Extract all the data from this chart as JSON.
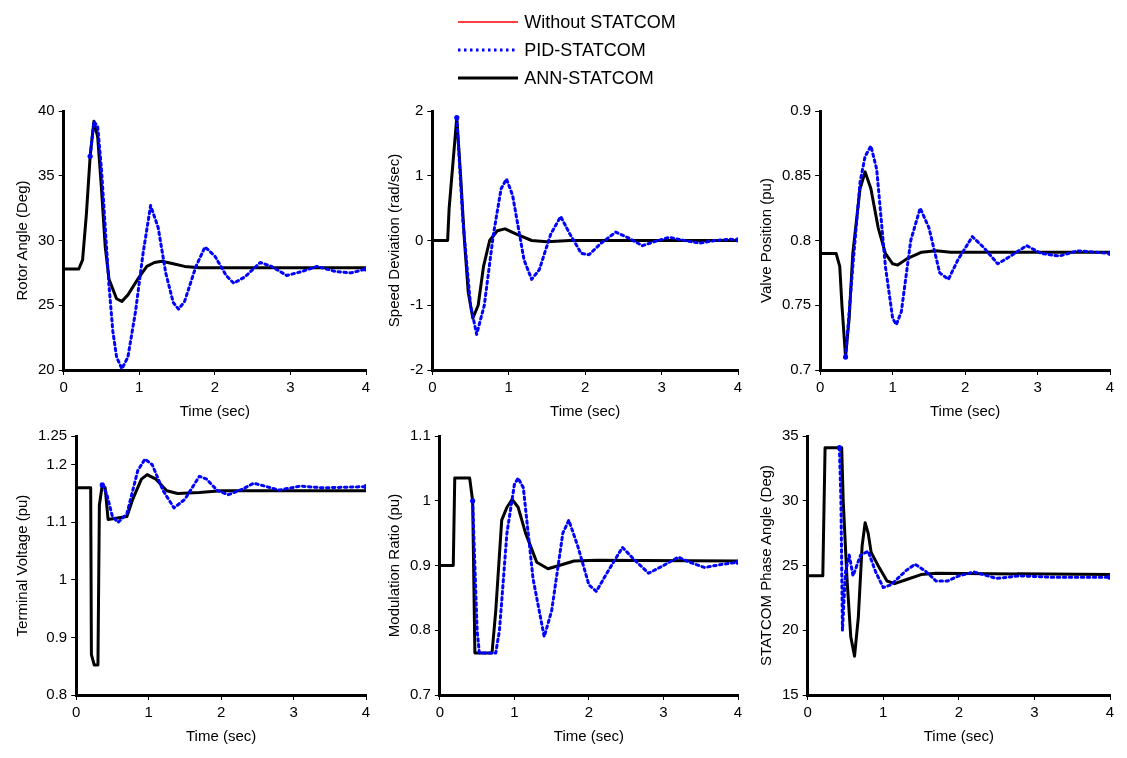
{
  "chart_data": [
    {
      "type": "line",
      "xlabel": "Time (sec)",
      "ylabel": "Rotor Angle (Deg)",
      "xlim": [
        0,
        4
      ],
      "xticks": [
        0,
        1,
        2,
        3,
        4
      ],
      "ylim": [
        20,
        40
      ],
      "yticks": [
        20,
        25,
        30,
        35,
        40
      ],
      "legend": "top",
      "grid": false,
      "series": [
        {
          "name": "Without STATCOM",
          "color": "#ff0000",
          "line_style": "solid"
        },
        {
          "name": "PID-STATCOM",
          "color": "#0000ff",
          "line_style": "dotted",
          "x": [
            0.35,
            0.4,
            0.45,
            0.5,
            0.55,
            0.6,
            0.65,
            0.7,
            0.77,
            0.85,
            0.95,
            1.05,
            1.15,
            1.25,
            1.35,
            1.45,
            1.52,
            1.6,
            1.75,
            1.87,
            2.0,
            2.15,
            2.25,
            2.4,
            2.6,
            2.75,
            2.95,
            3.15,
            3.35,
            3.6,
            3.8,
            4
          ],
          "values": [
            36.5,
            39.2,
            38.8,
            35.5,
            31,
            26.5,
            23,
            21,
            20.1,
            21,
            24.5,
            29,
            32.7,
            31,
            27.5,
            25.2,
            24.7,
            25.3,
            28,
            29.5,
            28.8,
            27.3,
            26.7,
            27.2,
            28.3,
            28,
            27.3,
            27.6,
            28,
            27.6,
            27.5,
            27.8
          ]
        },
        {
          "name": "ANN-STATCOM",
          "color": "#000000",
          "line_style": "solid",
          "x": [
            0,
            0.2,
            0.25,
            0.3,
            0.35,
            0.4,
            0.45,
            0.5,
            0.55,
            0.6,
            0.7,
            0.77,
            0.85,
            1.0,
            1.1,
            1.2,
            1.3,
            1.45,
            1.6,
            1.8,
            4
          ],
          "values": [
            27.8,
            27.8,
            28.5,
            32,
            36.5,
            39.2,
            38,
            34,
            29.5,
            27,
            25.5,
            25.3,
            25.8,
            27.2,
            28,
            28.3,
            28.4,
            28.2,
            28,
            27.9,
            27.9
          ]
        }
      ]
    },
    {
      "type": "line",
      "xlabel": "Time (sec)",
      "ylabel": "Speed Deviation (rad/sec)",
      "xlim": [
        0,
        4
      ],
      "xticks": [
        0,
        1,
        2,
        3,
        4
      ],
      "ylim": [
        -2,
        2
      ],
      "yticks": [
        -2,
        -1,
        0,
        1,
        2
      ],
      "grid": false,
      "series": [
        {
          "color": "#0000ff",
          "line_style": "dotted",
          "x": [
            0.32,
            0.4,
            0.5,
            0.58,
            0.68,
            0.8,
            0.9,
            0.97,
            1.05,
            1.2,
            1.3,
            1.4,
            1.55,
            1.68,
            1.8,
            1.95,
            2.05,
            2.2,
            2.4,
            2.55,
            2.75,
            2.9,
            3.1,
            3.3,
            3.5,
            3.7,
            3.9,
            4
          ],
          "values": [
            1.9,
            0.3,
            -1.0,
            -1.45,
            -1.0,
            0.1,
            0.8,
            0.95,
            0.7,
            -0.3,
            -0.6,
            -0.45,
            0.1,
            0.37,
            0.1,
            -0.2,
            -0.22,
            -0.05,
            0.13,
            0.05,
            -0.08,
            -0.02,
            0.05,
            0,
            -0.04,
            0,
            0.02,
            0.01
          ]
        },
        {
          "color": "#000000",
          "line_style": "solid",
          "x": [
            0,
            0.2,
            0.22,
            0.32,
            0.37,
            0.42,
            0.47,
            0.53,
            0.6,
            0.67,
            0.75,
            0.85,
            0.95,
            1.1,
            1.3,
            1.5,
            1.8,
            4
          ],
          "values": [
            0,
            0,
            0.5,
            1.9,
            1.0,
            0,
            -0.8,
            -1.2,
            -1.0,
            -0.4,
            0,
            0.15,
            0.18,
            0.1,
            0,
            -0.02,
            0,
            0
          ]
        }
      ]
    },
    {
      "type": "line",
      "xlabel": "Time (sec)",
      "ylabel": "Valve Position (pu)",
      "xlim": [
        0,
        4
      ],
      "xticks": [
        0,
        1,
        2,
        3,
        4
      ],
      "ylim": [
        0.7,
        0.9
      ],
      "yticks": [
        0.7,
        0.75,
        0.8,
        0.85,
        0.9
      ],
      "grid": false,
      "series": [
        {
          "color": "#0000ff",
          "line_style": "dotted",
          "x": [
            0.35,
            0.45,
            0.55,
            0.62,
            0.7,
            0.78,
            0.9,
            1.0,
            1.05,
            1.12,
            1.25,
            1.38,
            1.5,
            1.65,
            1.77,
            1.9,
            2.1,
            2.25,
            2.45,
            2.6,
            2.85,
            3.05,
            3.3,
            3.55,
            3.8,
            4
          ],
          "values": [
            0.71,
            0.78,
            0.845,
            0.865,
            0.873,
            0.855,
            0.78,
            0.74,
            0.735,
            0.745,
            0.8,
            0.825,
            0.81,
            0.775,
            0.77,
            0.785,
            0.803,
            0.795,
            0.782,
            0.787,
            0.796,
            0.79,
            0.788,
            0.792,
            0.791,
            0.79
          ]
        },
        {
          "color": "#000000",
          "line_style": "solid",
          "x": [
            0,
            0.22,
            0.27,
            0.3,
            0.35,
            0.4,
            0.45,
            0.55,
            0.62,
            0.7,
            0.8,
            0.9,
            1.0,
            1.07,
            1.2,
            1.4,
            1.6,
            1.8,
            4
          ],
          "values": [
            0.79,
            0.79,
            0.78,
            0.75,
            0.71,
            0.74,
            0.79,
            0.84,
            0.853,
            0.84,
            0.81,
            0.79,
            0.782,
            0.781,
            0.786,
            0.791,
            0.792,
            0.791,
            0.791
          ]
        }
      ]
    },
    {
      "type": "line",
      "xlabel": "Time (sec)",
      "ylabel": "Terminal Voltage (pu)",
      "xlim": [
        0,
        4
      ],
      "xticks": [
        0,
        1,
        2,
        3,
        4
      ],
      "ylim": [
        0.8,
        1.25
      ],
      "yticks": [
        0.8,
        0.9,
        1,
        1.1,
        1.2,
        1.25
      ],
      "grid": false,
      "series": [
        {
          "color": "#0000ff",
          "line_style": "dotted",
          "x": [
            0.36,
            0.42,
            0.5,
            0.58,
            0.7,
            0.85,
            0.95,
            1.05,
            1.2,
            1.35,
            1.5,
            1.7,
            1.8,
            1.95,
            2.1,
            2.3,
            2.45,
            2.6,
            2.8,
            3.1,
            3.4,
            4
          ],
          "values": [
            1.165,
            1.15,
            1.11,
            1.1,
            1.115,
            1.19,
            1.21,
            1.2,
            1.155,
            1.125,
            1.14,
            1.18,
            1.175,
            1.155,
            1.148,
            1.158,
            1.168,
            1.163,
            1.156,
            1.163,
            1.16,
            1.162
          ]
        },
        {
          "color": "#000000",
          "line_style": "solid",
          "x": [
            0,
            0.2,
            0.21,
            0.25,
            0.3,
            0.32,
            0.36,
            0.4,
            0.44,
            0.55,
            0.7,
            0.78,
            0.9,
            0.98,
            1.1,
            1.25,
            1.4,
            1.7,
            2,
            4
          ],
          "values": [
            1.16,
            1.16,
            0.87,
            0.852,
            0.852,
            1.13,
            1.165,
            1.16,
            1.105,
            1.107,
            1.11,
            1.14,
            1.175,
            1.183,
            1.175,
            1.155,
            1.15,
            1.152,
            1.155,
            1.155
          ]
        }
      ]
    },
    {
      "type": "line",
      "xlabel": "Time (sec)",
      "ylabel": "Modulation Ratio (pu)",
      "xlim": [
        0,
        4
      ],
      "xticks": [
        0,
        1,
        2,
        3,
        4
      ],
      "ylim": [
        0.7,
        1.1
      ],
      "yticks": [
        0.7,
        0.8,
        0.9,
        1,
        1.1
      ],
      "grid": false,
      "series": [
        {
          "color": "#0000ff",
          "line_style": "dotted",
          "x": [
            0.44,
            0.5,
            0.53,
            0.75,
            0.8,
            0.9,
            1.0,
            1.05,
            1.12,
            1.25,
            1.4,
            1.5,
            1.65,
            1.73,
            1.85,
            2.0,
            2.1,
            2.25,
            2.45,
            2.6,
            2.8,
            3.0,
            3.2,
            3.35,
            3.55,
            3.8,
            4
          ],
          "values": [
            1.0,
            0.8,
            0.765,
            0.765,
            0.8,
            0.95,
            1.025,
            1.035,
            1.02,
            0.88,
            0.79,
            0.83,
            0.95,
            0.97,
            0.93,
            0.87,
            0.86,
            0.89,
            0.928,
            0.91,
            0.888,
            0.9,
            0.913,
            0.905,
            0.897,
            0.902,
            0.905
          ]
        },
        {
          "color": "#000000",
          "line_style": "solid",
          "x": [
            0,
            0.18,
            0.2,
            0.4,
            0.44,
            0.47,
            0.7,
            0.75,
            0.83,
            0.9,
            0.97,
            1.05,
            1.15,
            1.3,
            1.45,
            1.6,
            1.8,
            2.1,
            4
          ],
          "values": [
            0.9,
            0.9,
            1.035,
            1.035,
            1.0,
            0.765,
            0.765,
            0.83,
            0.97,
            0.99,
            1.002,
            0.99,
            0.95,
            0.905,
            0.895,
            0.9,
            0.907,
            0.908,
            0.907
          ]
        }
      ]
    },
    {
      "type": "line",
      "xlabel": "Time (sec)",
      "ylabel": "STATCOM Phase Angle (Deg)",
      "xlim": [
        0,
        4
      ],
      "xticks": [
        0,
        1,
        2,
        3,
        4
      ],
      "ylim": [
        15,
        35
      ],
      "yticks": [
        15,
        20,
        25,
        30,
        35
      ],
      "grid": false,
      "series": [
        {
          "color": "#0000ff",
          "line_style": "dotted",
          "x": [
            0.42,
            0.44,
            0.46,
            0.5,
            0.55,
            0.6,
            0.7,
            0.8,
            0.9,
            1.0,
            1.1,
            1.3,
            1.42,
            1.55,
            1.7,
            1.85,
            2.0,
            2.2,
            2.5,
            2.8,
            3.2,
            4
          ],
          "values": [
            34.1,
            30,
            20,
            24.5,
            25.8,
            24.2,
            25.8,
            26.1,
            24.5,
            23.3,
            23.5,
            24.6,
            25.1,
            24.6,
            23.8,
            23.8,
            24.2,
            24.5,
            24,
            24.2,
            24.1,
            24.1
          ]
        },
        {
          "color": "#000000",
          "line_style": "solid",
          "x": [
            0,
            0.2,
            0.23,
            0.45,
            0.47,
            0.52,
            0.57,
            0.62,
            0.67,
            0.72,
            0.76,
            0.8,
            0.84,
            0.95,
            1.05,
            1.15,
            1.3,
            1.5,
            1.7,
            4
          ],
          "values": [
            24.2,
            24.2,
            34.1,
            34.1,
            30,
            24,
            19.5,
            18,
            21,
            26.5,
            28.3,
            27.5,
            26,
            24.8,
            23.8,
            23.6,
            23.9,
            24.3,
            24.4,
            24.3
          ]
        }
      ]
    }
  ]
}
